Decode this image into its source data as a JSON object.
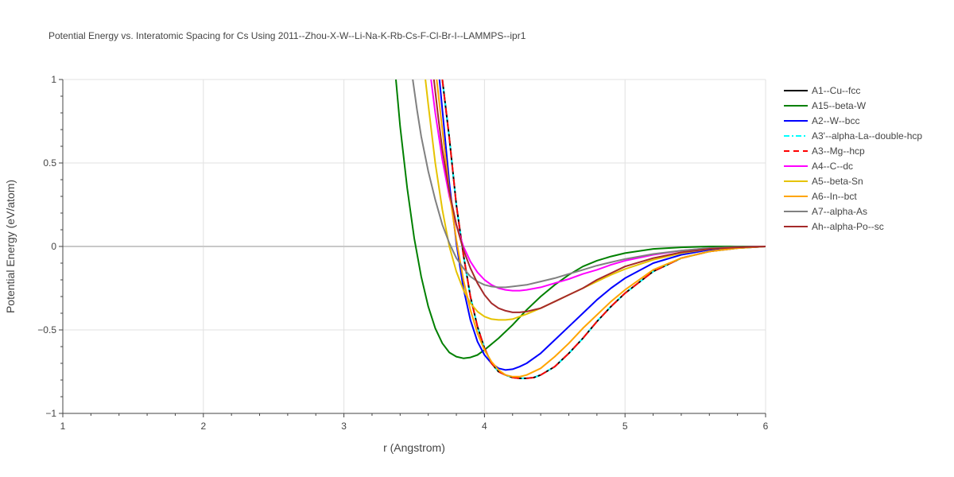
{
  "chart_data": {
    "type": "line",
    "title": "Potential Energy vs. Interatomic Spacing for Cs Using 2011--Zhou-X-W--Li-Na-K-Rb-Cs-F-Cl-Br-I--LAMMPS--ipr1",
    "xlabel": "r (Angstrom)",
    "ylabel": "Potential Energy (eV/atom)",
    "xlim": [
      1,
      6
    ],
    "ylim": [
      -1,
      1
    ],
    "xticks": [
      1,
      2,
      3,
      4,
      5,
      6
    ],
    "xtick_labels": [
      "1",
      "2",
      "3",
      "4",
      "5",
      "6"
    ],
    "yticks": [
      -1,
      -0.5,
      0,
      0.5,
      1
    ],
    "ytick_labels": [
      "−1",
      "−0.5",
      "0",
      "0.5",
      "1"
    ],
    "grid": true,
    "legend_position": "right",
    "series": [
      {
        "name": "A1--Cu--fcc",
        "color": "#000000",
        "dash": "solid",
        "x": [
          3.7,
          3.75,
          3.8,
          3.85,
          3.9,
          3.95,
          4.0,
          4.05,
          4.1,
          4.15,
          4.2,
          4.25,
          4.3,
          4.35,
          4.4,
          4.5,
          4.6,
          4.7,
          4.8,
          4.9,
          5.0,
          5.2,
          5.4,
          5.6,
          5.8,
          6.0
        ],
        "y": [
          1.0,
          0.65,
          0.25,
          -0.05,
          -0.3,
          -0.48,
          -0.61,
          -0.7,
          -0.75,
          -0.77,
          -0.785,
          -0.79,
          -0.79,
          -0.785,
          -0.77,
          -0.72,
          -0.64,
          -0.55,
          -0.45,
          -0.36,
          -0.28,
          -0.15,
          -0.07,
          -0.03,
          -0.01,
          0.0
        ]
      },
      {
        "name": "A15--beta-W",
        "color": "#008000",
        "dash": "solid",
        "x": [
          3.37,
          3.4,
          3.45,
          3.5,
          3.55,
          3.6,
          3.65,
          3.7,
          3.75,
          3.8,
          3.85,
          3.9,
          3.95,
          4.0,
          4.1,
          4.2,
          4.3,
          4.4,
          4.5,
          4.6,
          4.7,
          4.8,
          4.9,
          5.0,
          5.2,
          5.4,
          5.6,
          5.8,
          6.0
        ],
        "y": [
          1.0,
          0.72,
          0.35,
          0.05,
          -0.18,
          -0.36,
          -0.49,
          -0.58,
          -0.635,
          -0.66,
          -0.67,
          -0.665,
          -0.65,
          -0.62,
          -0.55,
          -0.47,
          -0.38,
          -0.3,
          -0.23,
          -0.17,
          -0.12,
          -0.085,
          -0.06,
          -0.04,
          -0.015,
          -0.005,
          0.0,
          0.0,
          0.0
        ]
      },
      {
        "name": "A2--W--bcc",
        "color": "#0000ff",
        "dash": "solid",
        "x": [
          3.68,
          3.7,
          3.75,
          3.8,
          3.85,
          3.9,
          3.95,
          4.0,
          4.05,
          4.1,
          4.15,
          4.2,
          4.25,
          4.3,
          4.4,
          4.5,
          4.6,
          4.7,
          4.8,
          4.9,
          5.0,
          5.2,
          5.4,
          5.6,
          5.8,
          6.0
        ],
        "y": [
          1.0,
          0.82,
          0.38,
          0.02,
          -0.25,
          -0.44,
          -0.57,
          -0.65,
          -0.7,
          -0.73,
          -0.74,
          -0.735,
          -0.72,
          -0.7,
          -0.64,
          -0.56,
          -0.48,
          -0.4,
          -0.32,
          -0.25,
          -0.19,
          -0.1,
          -0.05,
          -0.02,
          -0.005,
          0.0
        ]
      },
      {
        "name": "A3'--alpha-La--double-hcp",
        "color": "#00ffff",
        "dash": "dashdot",
        "x": [
          3.7,
          3.75,
          3.8,
          3.85,
          3.9,
          3.95,
          4.0,
          4.05,
          4.1,
          4.15,
          4.2,
          4.25,
          4.3,
          4.35,
          4.4,
          4.5,
          4.6,
          4.7,
          4.8,
          4.9,
          5.0,
          5.2,
          5.4,
          5.6,
          5.8,
          6.0
        ],
        "y": [
          1.0,
          0.65,
          0.25,
          -0.05,
          -0.3,
          -0.48,
          -0.61,
          -0.7,
          -0.75,
          -0.77,
          -0.785,
          -0.79,
          -0.79,
          -0.785,
          -0.77,
          -0.72,
          -0.64,
          -0.55,
          -0.45,
          -0.36,
          -0.28,
          -0.15,
          -0.07,
          -0.03,
          -0.01,
          0.0
        ]
      },
      {
        "name": "A3--Mg--hcp",
        "color": "#ff0000",
        "dash": "dash",
        "x": [
          3.7,
          3.75,
          3.8,
          3.85,
          3.9,
          3.95,
          4.0,
          4.05,
          4.1,
          4.15,
          4.2,
          4.25,
          4.3,
          4.35,
          4.4,
          4.5,
          4.6,
          4.7,
          4.8,
          4.9,
          5.0,
          5.2,
          5.4,
          5.6,
          5.8,
          6.0
        ],
        "y": [
          1.0,
          0.65,
          0.25,
          -0.05,
          -0.3,
          -0.48,
          -0.61,
          -0.7,
          -0.75,
          -0.77,
          -0.785,
          -0.79,
          -0.79,
          -0.785,
          -0.77,
          -0.72,
          -0.64,
          -0.55,
          -0.45,
          -0.36,
          -0.28,
          -0.15,
          -0.07,
          -0.03,
          -0.01,
          0.0
        ]
      },
      {
        "name": "A4--C--dc",
        "color": "#ff00ff",
        "dash": "solid",
        "x": [
          3.62,
          3.65,
          3.7,
          3.75,
          3.8,
          3.85,
          3.9,
          3.95,
          4.0,
          4.05,
          4.1,
          4.15,
          4.2,
          4.25,
          4.3,
          4.4,
          4.5,
          4.6,
          4.7,
          4.8,
          4.9,
          5.0,
          5.2,
          5.4,
          5.6,
          5.8,
          6.0
        ],
        "y": [
          1.0,
          0.8,
          0.52,
          0.3,
          0.13,
          0.0,
          -0.09,
          -0.155,
          -0.2,
          -0.23,
          -0.25,
          -0.26,
          -0.265,
          -0.265,
          -0.26,
          -0.245,
          -0.22,
          -0.195,
          -0.165,
          -0.14,
          -0.11,
          -0.085,
          -0.05,
          -0.025,
          -0.01,
          -0.003,
          0.0
        ]
      },
      {
        "name": "A5--beta-Sn",
        "color": "#e6c300",
        "dash": "solid",
        "x": [
          3.58,
          3.6,
          3.65,
          3.7,
          3.75,
          3.8,
          3.85,
          3.9,
          3.95,
          4.0,
          4.05,
          4.1,
          4.15,
          4.2,
          4.25,
          4.3,
          4.4,
          4.5,
          4.6,
          4.7,
          4.8,
          4.9,
          5.0,
          5.2,
          5.4,
          5.6,
          5.8,
          6.0
        ],
        "y": [
          1.0,
          0.85,
          0.5,
          0.22,
          0.0,
          -0.15,
          -0.26,
          -0.34,
          -0.39,
          -0.42,
          -0.435,
          -0.44,
          -0.44,
          -0.435,
          -0.42,
          -0.405,
          -0.37,
          -0.33,
          -0.29,
          -0.25,
          -0.21,
          -0.17,
          -0.135,
          -0.08,
          -0.04,
          -0.015,
          -0.005,
          0.0
        ]
      },
      {
        "name": "A6--In--bct",
        "color": "#ffa500",
        "dash": "solid",
        "x": [
          3.66,
          3.7,
          3.75,
          3.8,
          3.85,
          3.9,
          3.95,
          4.0,
          4.05,
          4.1,
          4.15,
          4.2,
          4.25,
          4.3,
          4.4,
          4.5,
          4.6,
          4.7,
          4.8,
          4.9,
          5.0,
          5.2,
          5.4,
          5.6,
          5.8,
          6.0
        ],
        "y": [
          1.0,
          0.7,
          0.33,
          0.04,
          -0.2,
          -0.38,
          -0.52,
          -0.62,
          -0.69,
          -0.74,
          -0.77,
          -0.78,
          -0.78,
          -0.77,
          -0.73,
          -0.66,
          -0.58,
          -0.49,
          -0.41,
          -0.33,
          -0.26,
          -0.14,
          -0.07,
          -0.03,
          -0.01,
          0.0
        ]
      },
      {
        "name": "A7--alpha-As",
        "color": "#808080",
        "dash": "solid",
        "x": [
          3.49,
          3.52,
          3.55,
          3.6,
          3.65,
          3.7,
          3.75,
          3.8,
          3.85,
          3.9,
          3.95,
          4.0,
          4.05,
          4.1,
          4.15,
          4.2,
          4.3,
          4.4,
          4.5,
          4.6,
          4.7,
          4.8,
          4.9,
          5.0,
          5.2,
          5.4,
          5.6,
          5.8,
          6.0
        ],
        "y": [
          1.0,
          0.82,
          0.66,
          0.45,
          0.28,
          0.13,
          0.02,
          -0.07,
          -0.13,
          -0.18,
          -0.21,
          -0.23,
          -0.24,
          -0.245,
          -0.245,
          -0.24,
          -0.23,
          -0.21,
          -0.19,
          -0.165,
          -0.14,
          -0.115,
          -0.095,
          -0.075,
          -0.045,
          -0.025,
          -0.01,
          -0.003,
          0.0
        ]
      },
      {
        "name": "Ah--alpha-Po--sc",
        "color": "#a52a2a",
        "dash": "solid",
        "x": [
          3.64,
          3.67,
          3.7,
          3.75,
          3.8,
          3.85,
          3.9,
          3.95,
          4.0,
          4.05,
          4.1,
          4.15,
          4.2,
          4.25,
          4.3,
          4.4,
          4.5,
          4.6,
          4.7,
          4.8,
          4.9,
          5.0,
          5.2,
          5.4,
          5.6,
          5.8,
          6.0
        ],
        "y": [
          1.0,
          0.78,
          0.58,
          0.33,
          0.13,
          -0.02,
          -0.13,
          -0.22,
          -0.29,
          -0.34,
          -0.37,
          -0.385,
          -0.395,
          -0.395,
          -0.39,
          -0.37,
          -0.33,
          -0.29,
          -0.25,
          -0.2,
          -0.16,
          -0.12,
          -0.07,
          -0.035,
          -0.015,
          -0.005,
          0.0
        ]
      }
    ]
  }
}
